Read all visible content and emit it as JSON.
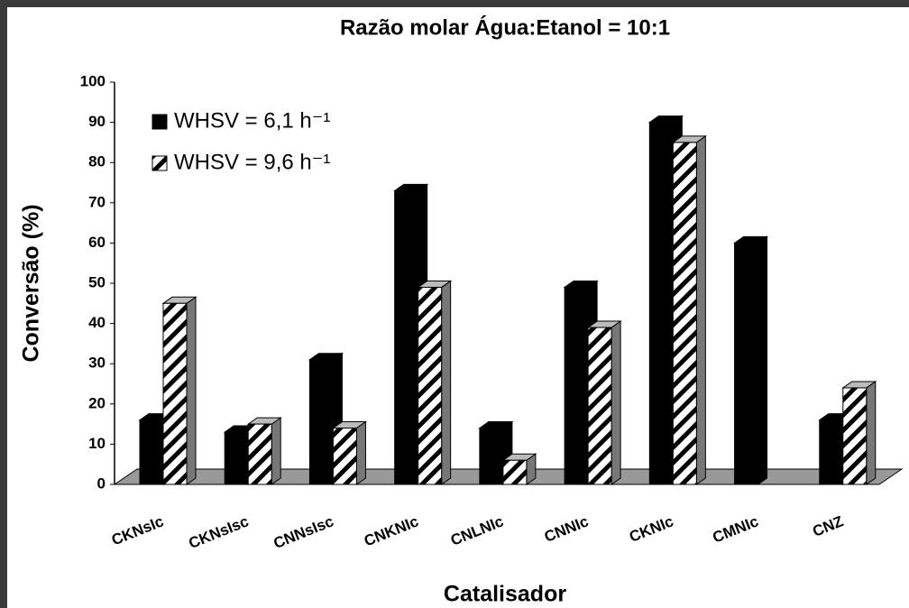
{
  "chart_data": {
    "type": "bar3d",
    "title": "Razão molar Água:Etanol = 10:1",
    "xlabel": "Catalisador",
    "ylabel": "Conversão (%)",
    "categories": [
      "CKNsIc",
      "CKNsIsc",
      "CNNsIsc",
      "CNKNIc",
      "CNLNIc",
      "CNNIc",
      "CKNIc",
      "CMNIc",
      "CNZ"
    ],
    "series": [
      {
        "name": "WHSV = 6,1 h⁻¹",
        "color": "#000000",
        "values": [
          16,
          13,
          31,
          73,
          14,
          49,
          90,
          60,
          16
        ]
      },
      {
        "name": "WHSV = 9,6 h⁻¹",
        "color": "hatch",
        "values": [
          45,
          15,
          14,
          49,
          6,
          39,
          85,
          null,
          24
        ]
      }
    ],
    "ylim": [
      0,
      100
    ],
    "yticks": [
      0,
      10,
      20,
      30,
      40,
      50,
      60,
      70,
      80,
      90,
      100
    ],
    "legend": "upper left"
  }
}
